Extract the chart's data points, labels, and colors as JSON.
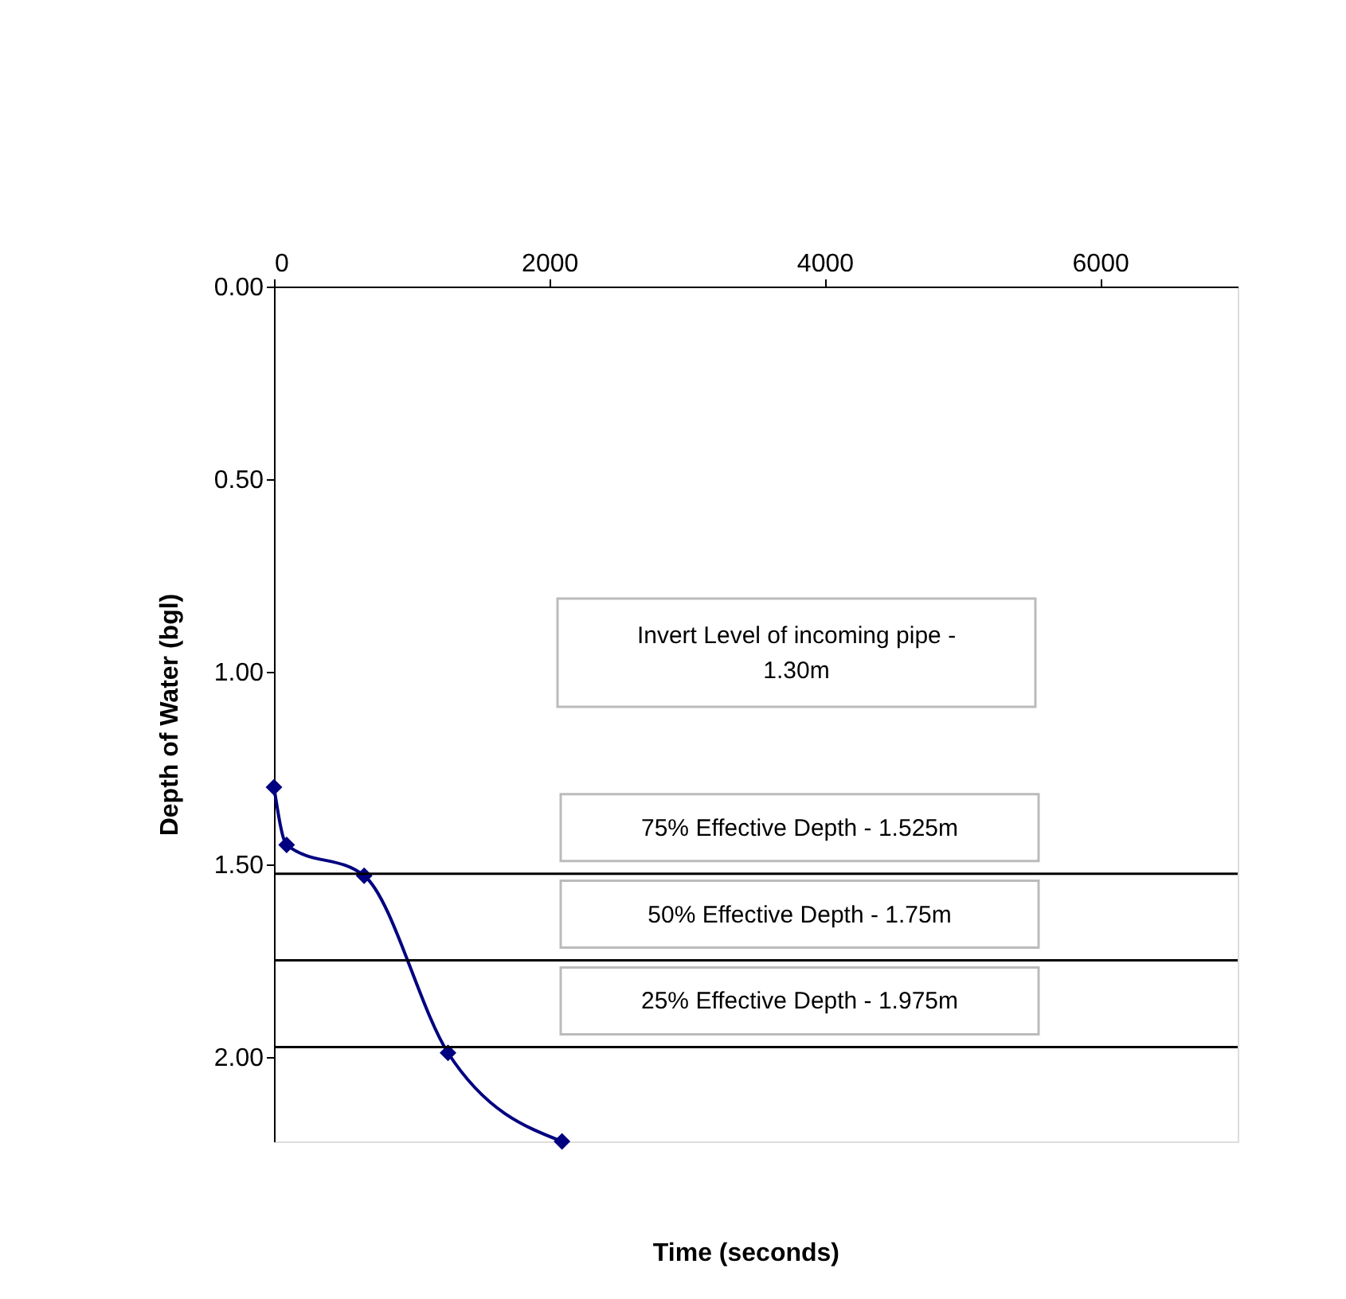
{
  "chart_data": {
    "type": "line",
    "xlabel": "Time (seconds)",
    "ylabel": "Depth of Water (bgl)",
    "x": [
      0,
      92,
      655,
      1264,
      2092
    ],
    "series": [
      {
        "color": "#000080",
        "values": [
          1.3,
          1.45,
          1.53,
          1.99,
          2.22
        ]
      }
    ],
    "xlim": [
      0,
      7000
    ],
    "xticks": [
      0,
      2000,
      4000,
      6000
    ],
    "ylim": [
      2.22,
      0
    ],
    "yticks": [
      {
        "value": 0,
        "label": "0.00"
      },
      {
        "value": 0.5,
        "label": "0.50"
      },
      {
        "value": 1,
        "label": "1.00"
      },
      {
        "value": 1.5,
        "label": "1.50"
      },
      {
        "value": 2,
        "label": "2.00"
      }
    ],
    "ref_lines": [
      {
        "axis": "y",
        "value": 1.525,
        "label": "75% Effective Depth - 1.525m",
        "color": "#000000"
      },
      {
        "axis": "y",
        "value": 1.75,
        "label": "50% Effective Depth - 1.75m",
        "color": "#000000"
      },
      {
        "axis": "y",
        "value": 1.975,
        "label": "25% Effective Depth - 1.975m",
        "color": "#000000"
      }
    ],
    "annotations": [
      "Invert Level of incoming pipe - 1.30m"
    ],
    "marker": "diamond",
    "line_style": "solid",
    "grid": false
  }
}
